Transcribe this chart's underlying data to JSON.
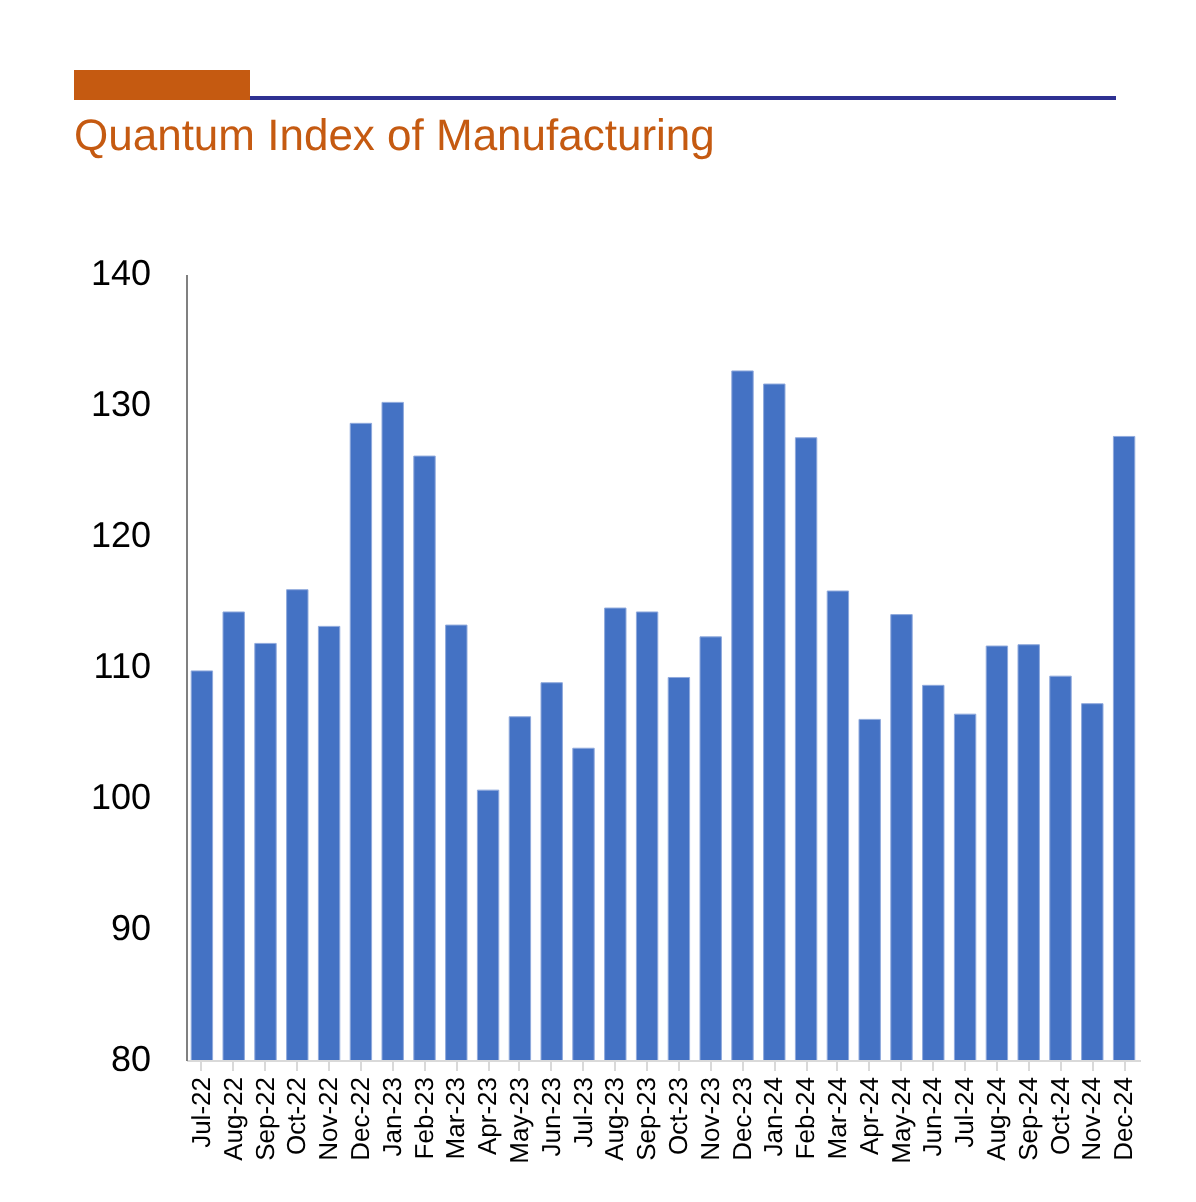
{
  "chart_data": {
    "type": "bar",
    "title": "Quantum Index of Manufacturing",
    "categories": [
      "Jul-22",
      "Aug-22",
      "Sep-22",
      "Oct-22",
      "Nov-22",
      "Dec-22",
      "Jan-23",
      "Feb-23",
      "Mar-23",
      "Apr-23",
      "May-23",
      "Jun-23",
      "Jul-23",
      "Aug-23",
      "Sep-23",
      "Oct-23",
      "Nov-23",
      "Dec-23",
      "Jan-24",
      "Feb-24",
      "Mar-24",
      "Apr-24",
      "May-24",
      "Jun-24",
      "Jul-24",
      "Aug-24",
      "Sep-24",
      "Oct-24",
      "Nov-24",
      "Dec-24"
    ],
    "values": [
      109.7,
      114.2,
      111.8,
      115.9,
      113.1,
      128.6,
      130.2,
      126.1,
      113.2,
      100.6,
      106.2,
      108.8,
      103.8,
      114.5,
      114.2,
      109.2,
      112.3,
      132.6,
      131.6,
      127.5,
      115.8,
      106.0,
      114.0,
      108.6,
      106.4,
      111.6,
      111.7,
      109.3,
      107.2,
      127.6
    ],
    "color": "#4472c4",
    "ylim": [
      80,
      140
    ],
    "yticks": [
      80,
      90,
      100,
      110,
      120,
      130,
      140
    ],
    "grid": false
  }
}
